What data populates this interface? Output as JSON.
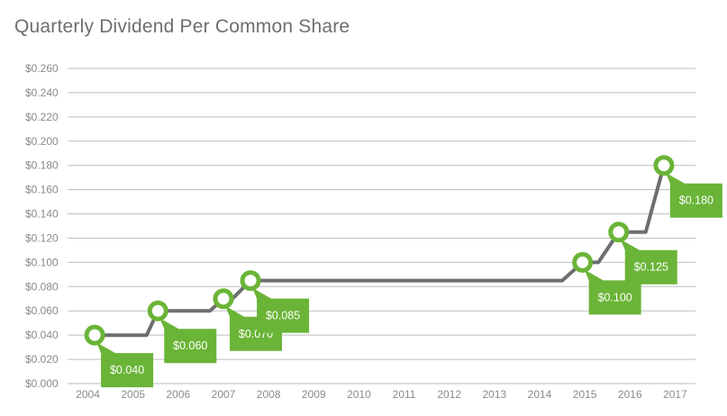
{
  "chart_data": {
    "type": "line",
    "title": "Quarterly Dividend Per Common Share",
    "x_ticks": [
      "2004",
      "2005",
      "2006",
      "2007",
      "2008",
      "2009",
      "2010",
      "2011",
      "2012",
      "2013",
      "2014",
      "2015",
      "2016",
      "2017"
    ],
    "y_ticks": [
      "$0.000",
      "$0.020",
      "$0.040",
      "$0.060",
      "$0.080",
      "$0.100",
      "$0.120",
      "$0.140",
      "$0.160",
      "$0.180",
      "$0.200",
      "$0.220",
      "$0.240",
      "$0.260"
    ],
    "ylim": [
      0,
      0.26
    ],
    "xlim": [
      2004,
      2017.9
    ],
    "grid": true,
    "series": [
      {
        "values": [
          {
            "x": 2004.6,
            "y": 0.04
          },
          {
            "x": 2005.75,
            "y": 0.04
          },
          {
            "x": 2006.0,
            "y": 0.06
          },
          {
            "x": 2007.15,
            "y": 0.06
          },
          {
            "x": 2007.45,
            "y": 0.07
          },
          {
            "x": 2007.65,
            "y": 0.07
          },
          {
            "x": 2008.05,
            "y": 0.085
          },
          {
            "x": 2014.95,
            "y": 0.085
          },
          {
            "x": 2015.4,
            "y": 0.1
          },
          {
            "x": 2015.75,
            "y": 0.1
          },
          {
            "x": 2016.2,
            "y": 0.125
          },
          {
            "x": 2016.8,
            "y": 0.125
          },
          {
            "x": 2017.2,
            "y": 0.18
          }
        ]
      }
    ],
    "milestones": [
      {
        "x": 2004.6,
        "y": 0.04,
        "label": "$0.040"
      },
      {
        "x": 2006.0,
        "y": 0.06,
        "label": "$0.060"
      },
      {
        "x": 2007.45,
        "y": 0.07,
        "label": "$0.070"
      },
      {
        "x": 2008.05,
        "y": 0.085,
        "label": "$0.085"
      },
      {
        "x": 2015.4,
        "y": 0.1,
        "label": "$0.100"
      },
      {
        "x": 2016.2,
        "y": 0.125,
        "label": "$0.125"
      },
      {
        "x": 2017.2,
        "y": 0.18,
        "label": "$0.180"
      }
    ],
    "colors": {
      "line": "#6d6e71",
      "marker": "#6ab437",
      "label_bg": "#6ab437",
      "grid": "#bcbec0"
    }
  }
}
